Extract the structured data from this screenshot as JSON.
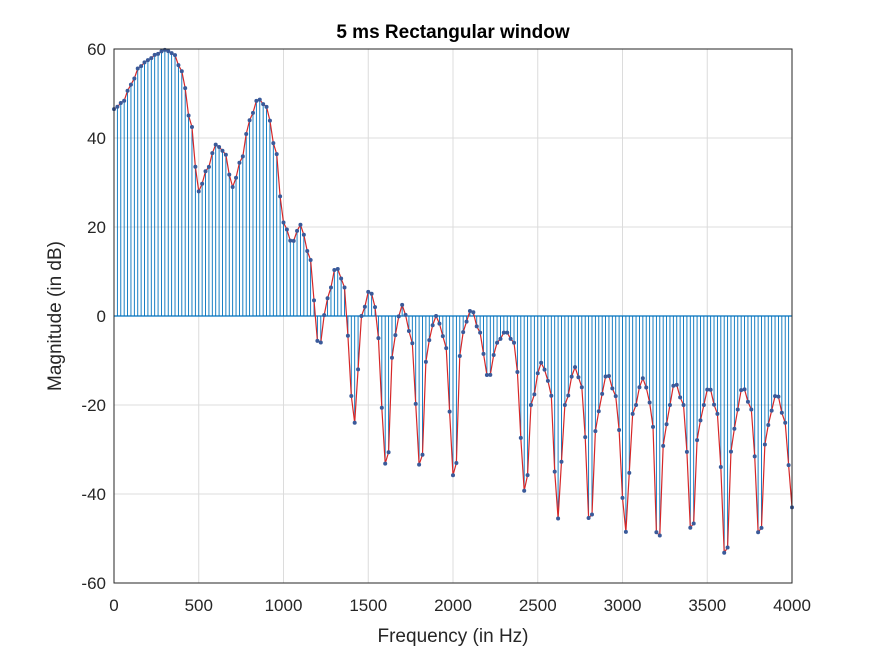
{
  "chart_data": {
    "type": "line",
    "title": "5 ms Rectangular window",
    "xlabel": "Frequency (in Hz)",
    "ylabel": "Magnitude (in dB)",
    "xlim": [
      0,
      4000
    ],
    "ylim": [
      -60,
      60
    ],
    "xticks": [
      "0",
      "500",
      "1000",
      "1500",
      "2000",
      "2500",
      "3000",
      "3500",
      "4000"
    ],
    "yticks": [
      "60",
      "40",
      "20",
      "0",
      "-20",
      "-40",
      "-60"
    ],
    "grid": true,
    "colors": {
      "stem": "#0072BD",
      "line": "#D62728",
      "marker": "#3A5A9A"
    },
    "sample_step_hz": 20,
    "x": [
      0,
      4000
    ],
    "envelope_points": [
      [
        0,
        46.5
      ],
      [
        50,
        48
      ],
      [
        100,
        52
      ],
      [
        150,
        56
      ],
      [
        200,
        57.5
      ],
      [
        250,
        58.8
      ],
      [
        300,
        59.8
      ],
      [
        350,
        59
      ],
      [
        400,
        55
      ],
      [
        450,
        44
      ],
      [
        500,
        28
      ],
      [
        550,
        33
      ],
      [
        600,
        38.5
      ],
      [
        650,
        37
      ],
      [
        700,
        29
      ],
      [
        750,
        35
      ],
      [
        800,
        44
      ],
      [
        850,
        48.8
      ],
      [
        900,
        47
      ],
      [
        950,
        38
      ],
      [
        1000,
        21
      ],
      [
        1050,
        16.5
      ],
      [
        1100,
        20.5
      ],
      [
        1150,
        14
      ],
      [
        1210,
        -7
      ],
      [
        1260,
        4
      ],
      [
        1310,
        11
      ],
      [
        1350,
        8
      ],
      [
        1420,
        -24
      ],
      [
        1460,
        0
      ],
      [
        1510,
        6
      ],
      [
        1540,
        2
      ],
      [
        1610,
        -35
      ],
      [
        1650,
        -5
      ],
      [
        1700,
        2.5
      ],
      [
        1750,
        -4
      ],
      [
        1810,
        -35.5
      ],
      [
        1850,
        -6
      ],
      [
        1900,
        0
      ],
      [
        1950,
        -5
      ],
      [
        2010,
        -38
      ],
      [
        2050,
        -4
      ],
      [
        2110,
        1.5
      ],
      [
        2150,
        -3
      ],
      [
        2210,
        -14
      ],
      [
        2260,
        -6
      ],
      [
        2310,
        -3.5
      ],
      [
        2360,
        -6
      ],
      [
        2430,
        -41
      ],
      [
        2460,
        -20
      ],
      [
        2520,
        -10.5
      ],
      [
        2570,
        -15
      ],
      [
        2620,
        -45.5
      ],
      [
        2660,
        -20
      ],
      [
        2720,
        -11.5
      ],
      [
        2760,
        -16
      ],
      [
        2810,
        -48.5
      ],
      [
        2850,
        -22
      ],
      [
        2910,
        -13
      ],
      [
        2960,
        -18
      ],
      [
        3020,
        -48.5
      ],
      [
        3060,
        -22
      ],
      [
        3120,
        -14
      ],
      [
        3170,
        -20
      ],
      [
        3210,
        -53.5
      ],
      [
        3250,
        -25
      ],
      [
        3310,
        -15
      ],
      [
        3360,
        -20
      ],
      [
        3410,
        -50.5
      ],
      [
        3450,
        -24
      ],
      [
        3510,
        -16
      ],
      [
        3560,
        -22
      ],
      [
        3610,
        -56.5
      ],
      [
        3650,
        -26
      ],
      [
        3710,
        -16
      ],
      [
        3760,
        -21
      ],
      [
        3810,
        -51.5
      ],
      [
        3850,
        -25
      ],
      [
        3910,
        -17.5
      ],
      [
        3960,
        -24
      ],
      [
        4000,
        -43
      ]
    ]
  }
}
